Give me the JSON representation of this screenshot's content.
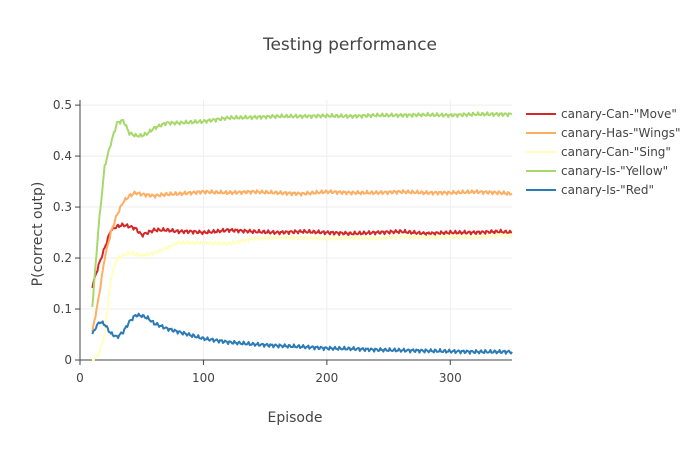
{
  "chart_data": {
    "type": "line",
    "title": "Testing performance",
    "xlabel": "Episode",
    "ylabel": "P(correct outp)",
    "xlim": [
      0,
      350
    ],
    "ylim": [
      0,
      0.51
    ],
    "x_ticks": [
      0,
      100,
      200,
      300
    ],
    "y_ticks": [
      0,
      0.1,
      0.2,
      0.3,
      0.4,
      0.5
    ],
    "x_tick_labels": [
      "0",
      "100",
      "200",
      "300"
    ],
    "y_tick_labels": [
      "0",
      "0.1",
      "0.2",
      "0.3",
      "0.4",
      "0.5"
    ],
    "grid": true,
    "legend_position": "right",
    "series": [
      {
        "name": "canary-Can-\"Move\"",
        "color": "#d62728",
        "x": [
          10,
          15,
          20,
          25,
          30,
          35,
          40,
          45,
          50,
          55,
          60,
          70,
          80,
          90,
          100,
          110,
          120,
          140,
          160,
          180,
          200,
          220,
          240,
          260,
          280,
          300,
          320,
          340,
          350
        ],
        "y": [
          0.145,
          0.185,
          0.22,
          0.255,
          0.262,
          0.265,
          0.262,
          0.258,
          0.245,
          0.25,
          0.255,
          0.255,
          0.252,
          0.252,
          0.25,
          0.252,
          0.255,
          0.252,
          0.25,
          0.252,
          0.25,
          0.248,
          0.25,
          0.252,
          0.248,
          0.25,
          0.25,
          0.252,
          0.25
        ]
      },
      {
        "name": "canary-Has-\"Wings\"",
        "color": "#fdae61",
        "x": [
          10,
          15,
          20,
          25,
          30,
          35,
          40,
          45,
          50,
          60,
          70,
          80,
          90,
          100,
          120,
          140,
          160,
          180,
          200,
          220,
          240,
          260,
          280,
          300,
          320,
          340,
          350
        ],
        "y": [
          0.055,
          0.12,
          0.2,
          0.25,
          0.285,
          0.31,
          0.322,
          0.328,
          0.325,
          0.322,
          0.325,
          0.326,
          0.328,
          0.33,
          0.328,
          0.33,
          0.328,
          0.326,
          0.33,
          0.328,
          0.328,
          0.33,
          0.328,
          0.328,
          0.33,
          0.328,
          0.326
        ]
      },
      {
        "name": "canary-Can-\"Sing\"",
        "color": "#ffffbf",
        "x": [
          10,
          15,
          20,
          25,
          30,
          35,
          40,
          50,
          60,
          70,
          80,
          100,
          120,
          140,
          160,
          180,
          200,
          220,
          240,
          260,
          280,
          300,
          320,
          340,
          350
        ],
        "y": [
          0.0,
          0.01,
          0.05,
          0.16,
          0.2,
          0.205,
          0.21,
          0.205,
          0.21,
          0.22,
          0.23,
          0.23,
          0.228,
          0.238,
          0.24,
          0.24,
          0.238,
          0.24,
          0.238,
          0.242,
          0.24,
          0.242,
          0.24,
          0.245,
          0.243
        ]
      },
      {
        "name": "canary-Is-\"Yellow\"",
        "color": "#a6d96a",
        "x": [
          10,
          15,
          20,
          25,
          30,
          35,
          40,
          45,
          50,
          55,
          60,
          70,
          80,
          100,
          120,
          140,
          160,
          180,
          200,
          220,
          240,
          260,
          280,
          300,
          320,
          340,
          350
        ],
        "y": [
          0.105,
          0.26,
          0.38,
          0.425,
          0.465,
          0.47,
          0.445,
          0.44,
          0.44,
          0.445,
          0.455,
          0.465,
          0.465,
          0.468,
          0.475,
          0.476,
          0.478,
          0.478,
          0.479,
          0.478,
          0.48,
          0.48,
          0.481,
          0.48,
          0.482,
          0.482,
          0.482
        ]
      },
      {
        "name": "canary-Is-\"Red\"",
        "color": "#2c7bb6",
        "x": [
          10,
          13,
          16,
          20,
          25,
          30,
          35,
          40,
          45,
          50,
          55,
          60,
          70,
          80,
          100,
          120,
          140,
          160,
          180,
          200,
          220,
          240,
          260,
          280,
          300,
          320,
          340,
          350
        ],
        "y": [
          0.05,
          0.065,
          0.075,
          0.07,
          0.052,
          0.045,
          0.055,
          0.075,
          0.088,
          0.087,
          0.082,
          0.072,
          0.062,
          0.055,
          0.042,
          0.035,
          0.031,
          0.028,
          0.026,
          0.023,
          0.022,
          0.02,
          0.019,
          0.018,
          0.017,
          0.016,
          0.016,
          0.016
        ]
      }
    ]
  }
}
